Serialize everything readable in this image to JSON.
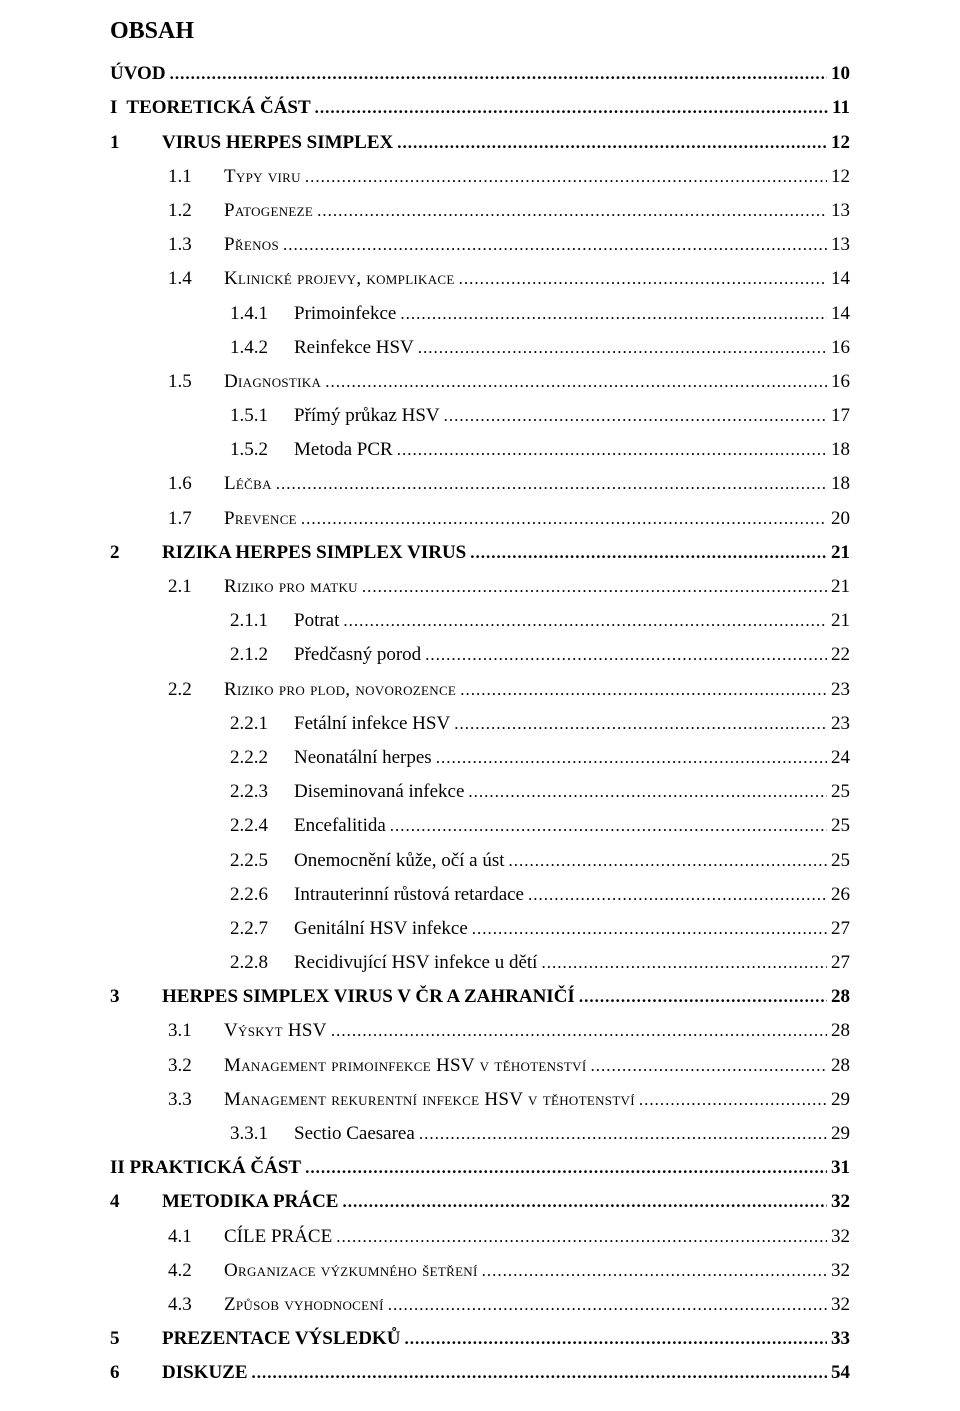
{
  "title": "OBSAH",
  "entries": [
    {
      "level": 0,
      "bold": true,
      "label": "ÚVOD",
      "page": "10"
    },
    {
      "level": 0,
      "bold": true,
      "rn": "I",
      "label": "TEORETICKÁ ČÁST",
      "page": "11"
    },
    {
      "level": 1,
      "bold": true,
      "num": "1",
      "label": "VIRUS HERPES SIMPLEX",
      "page": "12"
    },
    {
      "level": 2,
      "bold": false,
      "sc": true,
      "num": "1.1",
      "label": "Typy viru",
      "page": "12"
    },
    {
      "level": 2,
      "bold": false,
      "sc": true,
      "num": "1.2",
      "label": "Patogeneze",
      "page": "13"
    },
    {
      "level": 2,
      "bold": false,
      "sc": true,
      "num": "1.3",
      "label": "Přenos",
      "page": "13"
    },
    {
      "level": 2,
      "bold": false,
      "sc": true,
      "num": "1.4",
      "label": "Klinické projevy, komplikace",
      "page": "14"
    },
    {
      "level": 3,
      "bold": false,
      "num": "1.4.1",
      "label": "Primoinfekce",
      "page": "14"
    },
    {
      "level": 3,
      "bold": false,
      "num": "1.4.2",
      "label": "Reinfekce HSV",
      "page": "16"
    },
    {
      "level": 2,
      "bold": false,
      "sc": true,
      "num": "1.5",
      "label": "Diagnostika",
      "page": "16"
    },
    {
      "level": 3,
      "bold": false,
      "num": "1.5.1",
      "label": "Přímý průkaz HSV",
      "page": "17"
    },
    {
      "level": 3,
      "bold": false,
      "num": "1.5.2",
      "label": "Metoda PCR",
      "page": "18"
    },
    {
      "level": 2,
      "bold": false,
      "sc": true,
      "num": "1.6",
      "label": "Léčba",
      "page": "18"
    },
    {
      "level": 2,
      "bold": false,
      "sc": true,
      "num": "1.7",
      "label": "Prevence",
      "page": "20"
    },
    {
      "level": 1,
      "bold": true,
      "num": "2",
      "label": "RIZIKA HERPES SIMPLEX VIRUS",
      "page": "21"
    },
    {
      "level": 2,
      "bold": false,
      "sc": true,
      "num": "2.1",
      "label": "Riziko pro matku",
      "page": "21"
    },
    {
      "level": 3,
      "bold": false,
      "num": "2.1.1",
      "label": "Potrat",
      "page": "21"
    },
    {
      "level": 3,
      "bold": false,
      "num": "2.1.2",
      "label": "Předčasný porod",
      "page": "22"
    },
    {
      "level": 2,
      "bold": false,
      "sc": true,
      "num": "2.2",
      "label": "Riziko pro plod, novorozence",
      "page": "23"
    },
    {
      "level": 3,
      "bold": false,
      "num": "2.2.1",
      "label": "Fetální infekce HSV",
      "page": "23"
    },
    {
      "level": 3,
      "bold": false,
      "num": "2.2.2",
      "label": "Neonatální herpes",
      "page": "24"
    },
    {
      "level": 3,
      "bold": false,
      "num": "2.2.3",
      "label": "Diseminovaná infekce",
      "page": "25"
    },
    {
      "level": 3,
      "bold": false,
      "num": "2.2.4",
      "label": "Encefalitida",
      "page": "25"
    },
    {
      "level": 3,
      "bold": false,
      "num": "2.2.5",
      "label": "Onemocnění kůže, očí a úst",
      "page": "25"
    },
    {
      "level": 3,
      "bold": false,
      "num": "2.2.6",
      "label": "Intrauterinní růstová retardace",
      "page": "26"
    },
    {
      "level": 3,
      "bold": false,
      "num": "2.2.7",
      "label": "Genitální HSV infekce",
      "page": "27"
    },
    {
      "level": 3,
      "bold": false,
      "num": "2.2.8",
      "label": "Recidivující HSV infekce u dětí",
      "page": "27"
    },
    {
      "level": 1,
      "bold": true,
      "num": "3",
      "label": "HERPES SIMPLEX VIRUS V ČR A ZAHRANIČÍ",
      "page": "28"
    },
    {
      "level": 2,
      "bold": false,
      "sc": true,
      "num": "3.1",
      "label": "Výskyt HSV",
      "page": "28"
    },
    {
      "level": 2,
      "bold": false,
      "sc": true,
      "num": "3.2",
      "label": "Management primoinfekce HSV v těhotenství",
      "page": "28"
    },
    {
      "level": 2,
      "bold": false,
      "sc": true,
      "num": "3.3",
      "label": "Management rekurentní infekce HSV v těhotenství",
      "page": "29"
    },
    {
      "level": 3,
      "bold": false,
      "num": "3.3.1",
      "label": "Sectio Caesarea",
      "page": "29"
    },
    {
      "level": 0,
      "bold": true,
      "rn": "II",
      "label": "PRAKTICKÁ ČÁST",
      "page": "31"
    },
    {
      "level": 1,
      "bold": true,
      "num": "4",
      "label": "METODIKA PRÁCE",
      "page": "32"
    },
    {
      "level": 2,
      "bold": false,
      "num": "4.1",
      "label": "CÍLE PRÁCE",
      "page": "32"
    },
    {
      "level": 2,
      "bold": false,
      "sc": true,
      "num": "4.2",
      "label": "Organizace výzkumného šetření",
      "page": "32"
    },
    {
      "level": 2,
      "bold": false,
      "sc": true,
      "num": "4.3",
      "label": "Způsob vyhodnocení",
      "page": "32"
    },
    {
      "level": 1,
      "bold": true,
      "num": "5",
      "label": "PREZENTACE VÝSLEDKŮ",
      "page": "33"
    },
    {
      "level": 1,
      "bold": true,
      "num": "6",
      "label": "DISKUZE",
      "page": "54"
    }
  ]
}
